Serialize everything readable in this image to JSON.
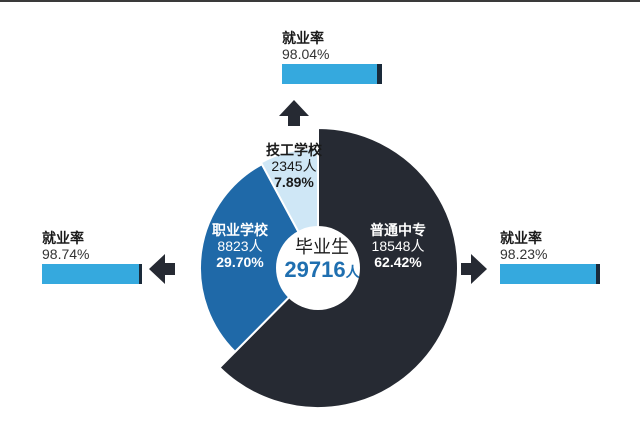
{
  "chart_data": {
    "type": "pie",
    "title": "",
    "center": {
      "title": "毕业生",
      "total": "29716",
      "unit": "人"
    },
    "slices": [
      {
        "name": "普通中专",
        "count": "18548人",
        "value": 62.42,
        "percent": "62.42%",
        "color": "#262a33",
        "text_color": "#ffffff",
        "employment": {
          "label": "就业率",
          "value": 98.23,
          "text": "98.23%"
        }
      },
      {
        "name": "职业学校",
        "count": "8823人",
        "value": 29.7,
        "percent": "29.70%",
        "color": "#1f69a8",
        "text_color": "#ffffff",
        "employment": {
          "label": "就业率",
          "value": 98.74,
          "text": "98.74%"
        }
      },
      {
        "name": "技工学校",
        "count": "2345人",
        "value": 7.89,
        "percent": "7.89%",
        "color": "#cfe7f6",
        "text_color": "#1a1a1a",
        "employment": {
          "label": "就业率",
          "value": 98.04,
          "text": "98.04%"
        }
      }
    ]
  },
  "colors": {
    "bar": "#35a9de",
    "bar_end": "#1a2a3a",
    "arrow": "#262a33",
    "center_accent": "#1f6fb0"
  }
}
